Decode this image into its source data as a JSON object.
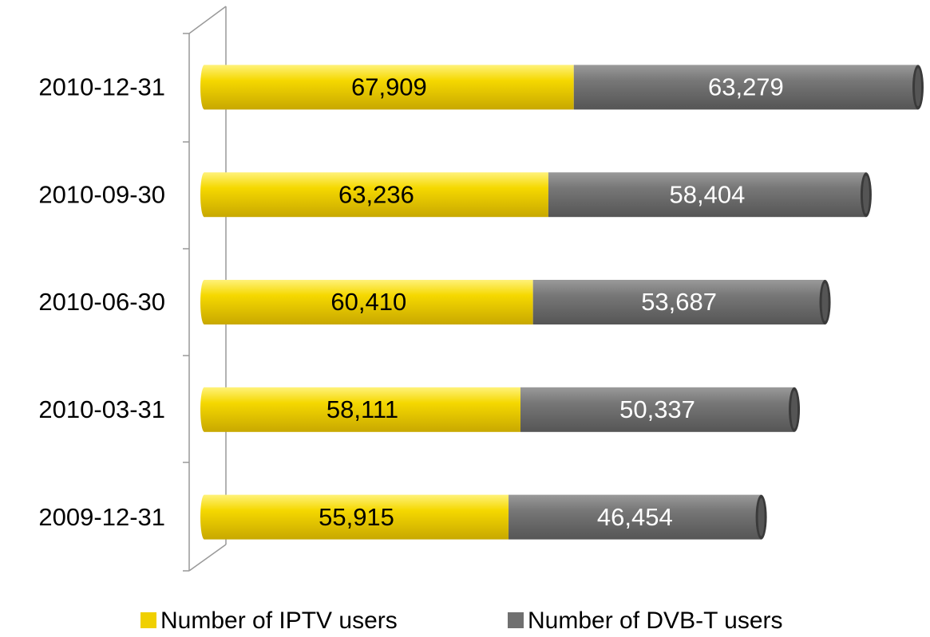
{
  "chart_data": {
    "type": "stacked-bar-horizontal",
    "categories": [
      "2010-12-31",
      "2010-09-30",
      "2010-06-30",
      "2010-03-31",
      "2009-12-31"
    ],
    "series": [
      {
        "name": "Number of IPTV users",
        "color": "#f0d000",
        "values": [
          67909,
          63236,
          60410,
          58111,
          55915
        ],
        "value_labels": [
          "67,909",
          "63,236",
          "60,410",
          "58,111",
          "55,915"
        ]
      },
      {
        "name": "Number of DVB-T users",
        "color": "#707070",
        "values": [
          63279,
          58404,
          53687,
          50337,
          46454
        ],
        "value_labels": [
          "63,279",
          "58,404",
          "53,687",
          "50,337",
          "46,454"
        ]
      }
    ],
    "legend": "bottom"
  }
}
